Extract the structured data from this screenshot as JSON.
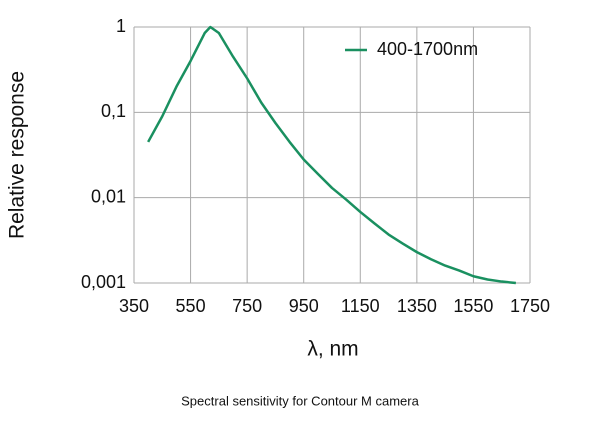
{
  "chart_data": {
    "type": "line",
    "ylabel": "Relative response",
    "xlabel": "λ, nm",
    "caption": "Spectral sensitivity for Contour M camera",
    "x": [
      400,
      450,
      500,
      550,
      600,
      620,
      650,
      700,
      750,
      800,
      850,
      900,
      950,
      1000,
      1050,
      1100,
      1150,
      1200,
      1250,
      1300,
      1350,
      1400,
      1450,
      1500,
      1550,
      1600,
      1650,
      1700
    ],
    "series": [
      {
        "name": "400-1700nm",
        "color": "#1a9060",
        "values": [
          0.045,
          0.09,
          0.2,
          0.4,
          0.85,
          1.0,
          0.85,
          0.45,
          0.25,
          0.13,
          0.075,
          0.045,
          0.028,
          0.019,
          0.013,
          0.0095,
          0.0068,
          0.005,
          0.0037,
          0.0029,
          0.0023,
          0.0019,
          0.0016,
          0.0014,
          0.0012,
          0.0011,
          0.00104,
          0.001
        ]
      }
    ],
    "xlim": [
      350,
      1750
    ],
    "xticks": [
      350,
      550,
      750,
      950,
      1150,
      1350,
      1550,
      1750
    ],
    "ylim": [
      0.001,
      1
    ],
    "y_scale": "log",
    "yticks": [
      {
        "value": 0.001,
        "label": "0,001"
      },
      {
        "value": 0.01,
        "label": "0,01"
      },
      {
        "value": 0.1,
        "label": "0,1"
      },
      1
    ],
    "grid": true,
    "legend": "upper right"
  }
}
